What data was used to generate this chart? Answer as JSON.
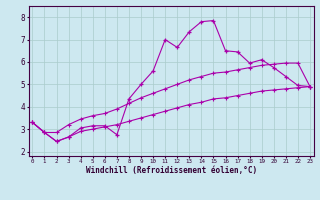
{
  "xlabel": "Windchill (Refroidissement éolien,°C)",
  "bg_color": "#cde8f0",
  "line_color": "#aa00aa",
  "grid_color": "#aacccc",
  "x_values": [
    0,
    1,
    2,
    3,
    4,
    5,
    6,
    7,
    8,
    9,
    10,
    11,
    12,
    13,
    14,
    15,
    16,
    17,
    18,
    19,
    20,
    21,
    22,
    23
  ],
  "y_main": [
    3.3,
    2.85,
    2.45,
    2.65,
    3.05,
    3.15,
    3.15,
    2.75,
    4.35,
    5.0,
    5.6,
    7.0,
    6.65,
    7.35,
    7.8,
    7.85,
    6.5,
    6.45,
    5.95,
    6.1,
    5.75,
    5.35,
    4.95,
    4.9
  ],
  "y_upper": [
    3.3,
    2.85,
    2.85,
    3.2,
    3.45,
    3.6,
    3.7,
    3.9,
    4.15,
    4.4,
    4.6,
    4.8,
    5.0,
    5.2,
    5.35,
    5.5,
    5.55,
    5.65,
    5.75,
    5.85,
    5.9,
    5.95,
    5.95,
    4.9
  ],
  "y_lower": [
    3.3,
    2.85,
    2.45,
    2.65,
    2.9,
    3.0,
    3.1,
    3.2,
    3.35,
    3.5,
    3.65,
    3.8,
    3.95,
    4.1,
    4.2,
    4.35,
    4.4,
    4.5,
    4.6,
    4.7,
    4.75,
    4.8,
    4.85,
    4.9
  ],
  "ylim": [
    1.8,
    8.5
  ],
  "yticks": [
    2,
    3,
    4,
    5,
    6,
    7,
    8
  ],
  "xlim": [
    -0.3,
    23.3
  ],
  "marker": "+"
}
